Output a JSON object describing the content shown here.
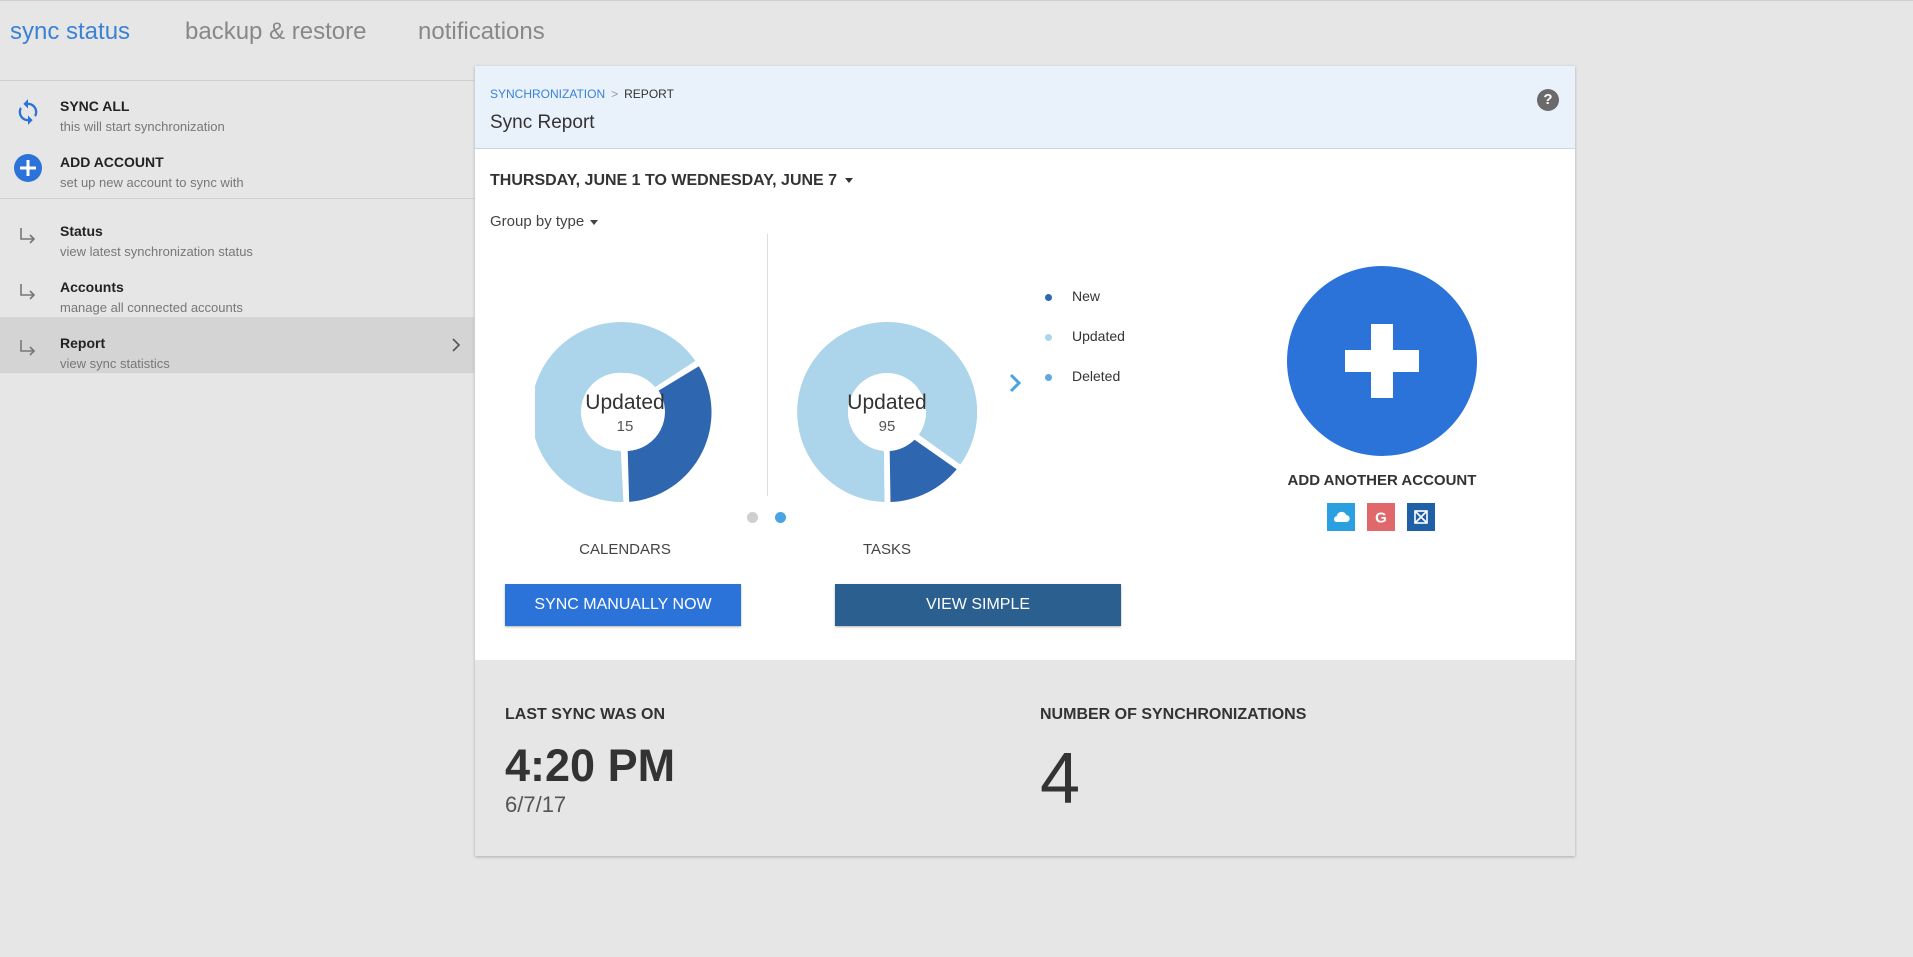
{
  "tabs": [
    {
      "label": "sync status",
      "active": true
    },
    {
      "label": "backup & restore",
      "active": false
    },
    {
      "label": "notifications",
      "active": false
    }
  ],
  "sidebar": {
    "actions": [
      {
        "title": "SYNC ALL",
        "subtitle": "this will start synchronization",
        "icon": "sync-icon"
      },
      {
        "title": "ADD ACCOUNT",
        "subtitle": "set up new account to sync with",
        "icon": "plus-circle-icon"
      }
    ],
    "nav": [
      {
        "title": "Status",
        "subtitle": "view latest synchronization status",
        "icon": "subdirectory-arrow-icon"
      },
      {
        "title": "Accounts",
        "subtitle": "manage all connected accounts",
        "icon": "subdirectory-arrow-icon"
      },
      {
        "title": "Report",
        "subtitle": "view sync statistics",
        "icon": "subdirectory-arrow-icon",
        "selected": true
      }
    ]
  },
  "panel": {
    "breadcrumb": {
      "link": "SYNCHRONIZATION",
      "separator": ">",
      "current": "REPORT"
    },
    "title": "Sync Report",
    "help_icon": "help-icon",
    "date_range": "THURSDAY, JUNE 1 TO WEDNESDAY, JUNE 7",
    "group_by": "Group by type"
  },
  "charts": {
    "calendars": {
      "caption": "CALENDARS",
      "center_label": "Updated",
      "center_value": "15"
    },
    "tasks": {
      "caption": "TASKS",
      "center_label": "Updated",
      "center_value": "95"
    }
  },
  "legend": [
    {
      "label": "New",
      "color": "#2f66b0"
    },
    {
      "label": "Updated",
      "color": "#acd4ea"
    },
    {
      "label": "Deleted",
      "color": "#5ea9dd"
    }
  ],
  "carousel": {
    "pages": 2,
    "active_page": 2
  },
  "add_account": {
    "caption": "ADD ANOTHER ACCOUNT",
    "providers": [
      {
        "icon": "cloud-icon",
        "color": "#2ba0e0"
      },
      {
        "icon": "google-icon",
        "color": "#e0686a"
      },
      {
        "icon": "exchange-icon",
        "color": "#1f5fa6"
      }
    ]
  },
  "buttons": {
    "sync_manually": "SYNC MANUALLY NOW",
    "view_simple": "VIEW SIMPLE"
  },
  "footer": {
    "last_sync_label": "LAST SYNC WAS ON",
    "last_sync_time": "4:20 PM",
    "last_sync_date": "6/7/17",
    "sync_count_label": "NUMBER OF SYNCHRONIZATIONS",
    "sync_count": "4"
  },
  "colors": {
    "accent": "#3b82d6",
    "primary_button": "#2b73d9",
    "secondary_button": "#2a5f8f",
    "donut_dark": "#2f66b0",
    "donut_light": "#acd4ea"
  }
}
